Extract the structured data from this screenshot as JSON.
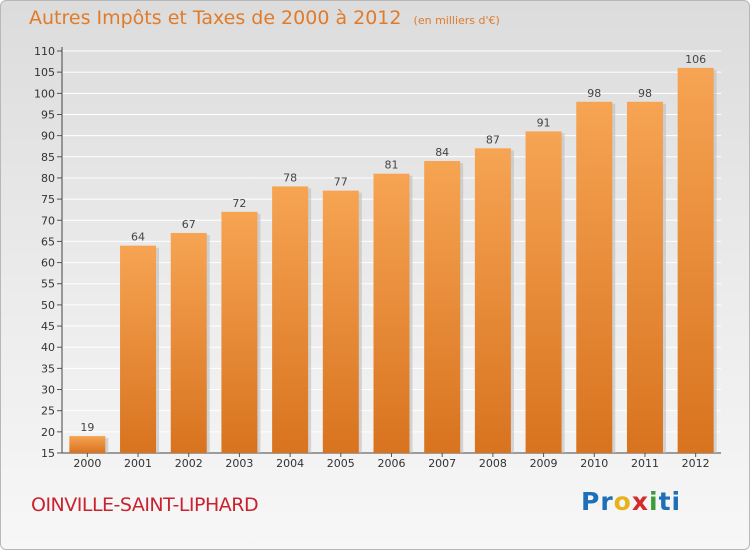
{
  "header": {
    "title": "Autres Impôts et Taxes de 2000 à 2012",
    "unit": "(en milliers d'€)"
  },
  "footer": {
    "commune": "OINVILLE-SAINT-LIPHARD",
    "logo_parts": [
      "Pr",
      "o",
      "x",
      "i",
      "ti"
    ]
  },
  "colors": {
    "title": "#e07b2a",
    "commune": "#c8232f",
    "bar_top": "#f6a453",
    "bar_bottom": "#d8731f",
    "logo": [
      "#1f6fb8",
      "#e8b21b",
      "#d42b2b",
      "#3a9d3a",
      "#1f6fb8"
    ]
  },
  "chart_data": {
    "type": "bar",
    "categories": [
      "2000",
      "2001",
      "2002",
      "2003",
      "2004",
      "2005",
      "2006",
      "2007",
      "2008",
      "2009",
      "2010",
      "2011",
      "2012"
    ],
    "values": [
      19,
      64,
      67,
      72,
      78,
      77,
      81,
      84,
      87,
      91,
      98,
      98,
      106
    ],
    "ylim": [
      15,
      110
    ],
    "yticks": [
      15,
      20,
      25,
      30,
      35,
      40,
      45,
      50,
      55,
      60,
      65,
      70,
      75,
      80,
      85,
      90,
      95,
      100,
      105,
      110
    ],
    "grid": true,
    "xlabel": "",
    "ylabel": ""
  }
}
